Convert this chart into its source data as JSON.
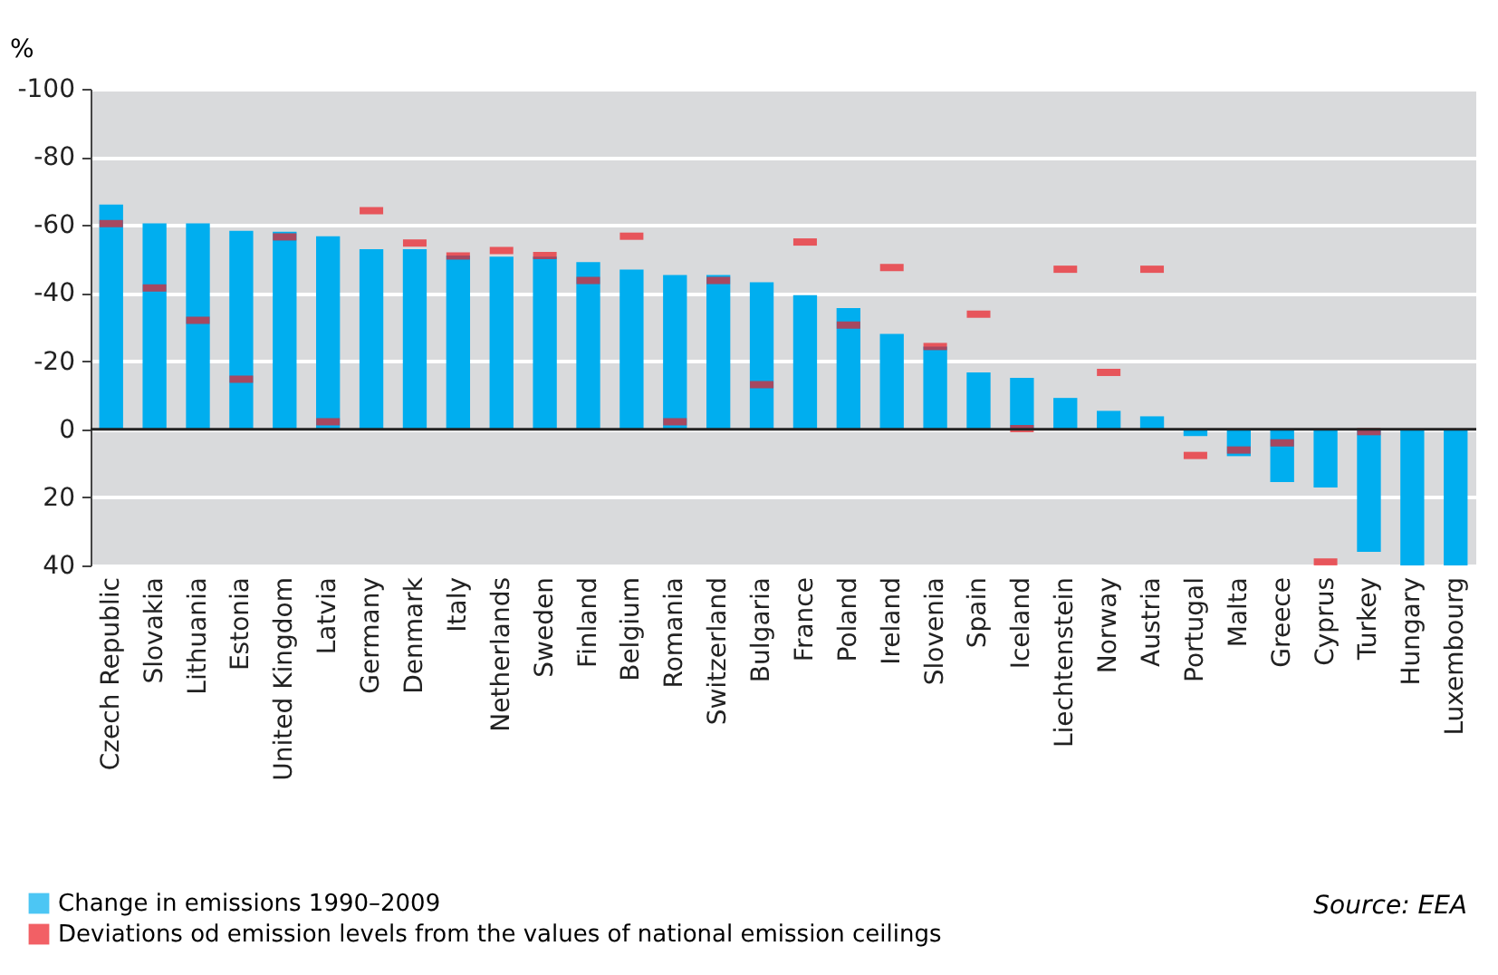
{
  "chart_data": {
    "type": "bar",
    "ylabel": "%",
    "categories": [
      "Czech Republic",
      "Slovakia",
      "Lithuania",
      "Estonia",
      "United Kingdom",
      "Latvia",
      "Germany",
      "Denmark",
      "Italy",
      "Netherlands",
      "Sweden",
      "Finland",
      "Belgium",
      "Romania",
      "Switzerland",
      "Bulgaria",
      "France",
      "Poland",
      "Ireland",
      "Slovenia",
      "Spain",
      "Iceland",
      "Liechtenstein",
      "Norway",
      "Austria",
      "Portugal",
      "Malta",
      "Greece",
      "Cyprus",
      "Turkey",
      "Hungary",
      "Luxembourg"
    ],
    "series": [
      {
        "name": "Change in emissions 1990–2009",
        "type": "bar",
        "color": "#00aeef",
        "values": [
          -66,
          -60.5,
          -60.5,
          -58.3,
          -58,
          -56.7,
          -52.9,
          -52.9,
          -51,
          -50.7,
          -50.7,
          -49.1,
          -46.9,
          -45.3,
          -45.3,
          -43.2,
          -39.4,
          -35.6,
          -28,
          -24.3,
          -16.7,
          -15.1,
          -9.2,
          -5.4,
          -3.8,
          2,
          7.9,
          15.5,
          17.1,
          36,
          40,
          40
        ]
      },
      {
        "name": "Deviations od emission levels from the values of national emission ceilings",
        "type": "scatter",
        "color": "#ed1c24",
        "values": [
          -60.4,
          -41.5,
          -32,
          -14.7,
          -56.5,
          -2.2,
          -64.2,
          -54.7,
          -50.9,
          -52.5,
          -51,
          -43.7,
          -56.7,
          -2.2,
          -43.7,
          -13.1,
          -55,
          -30.6,
          -47.5,
          -24.3,
          -33.8,
          -0.2,
          -47,
          -16.7,
          -47,
          7.7,
          6.1,
          4,
          39,
          0.7,
          null,
          null
        ]
      }
    ],
    "ylim": [
      40,
      -100
    ],
    "yticks": [
      -100,
      -80,
      -60,
      -40,
      -20,
      0,
      20,
      40
    ],
    "grid": "y",
    "legend": "bottom left",
    "annotations": [
      "Source: EEA"
    ]
  }
}
